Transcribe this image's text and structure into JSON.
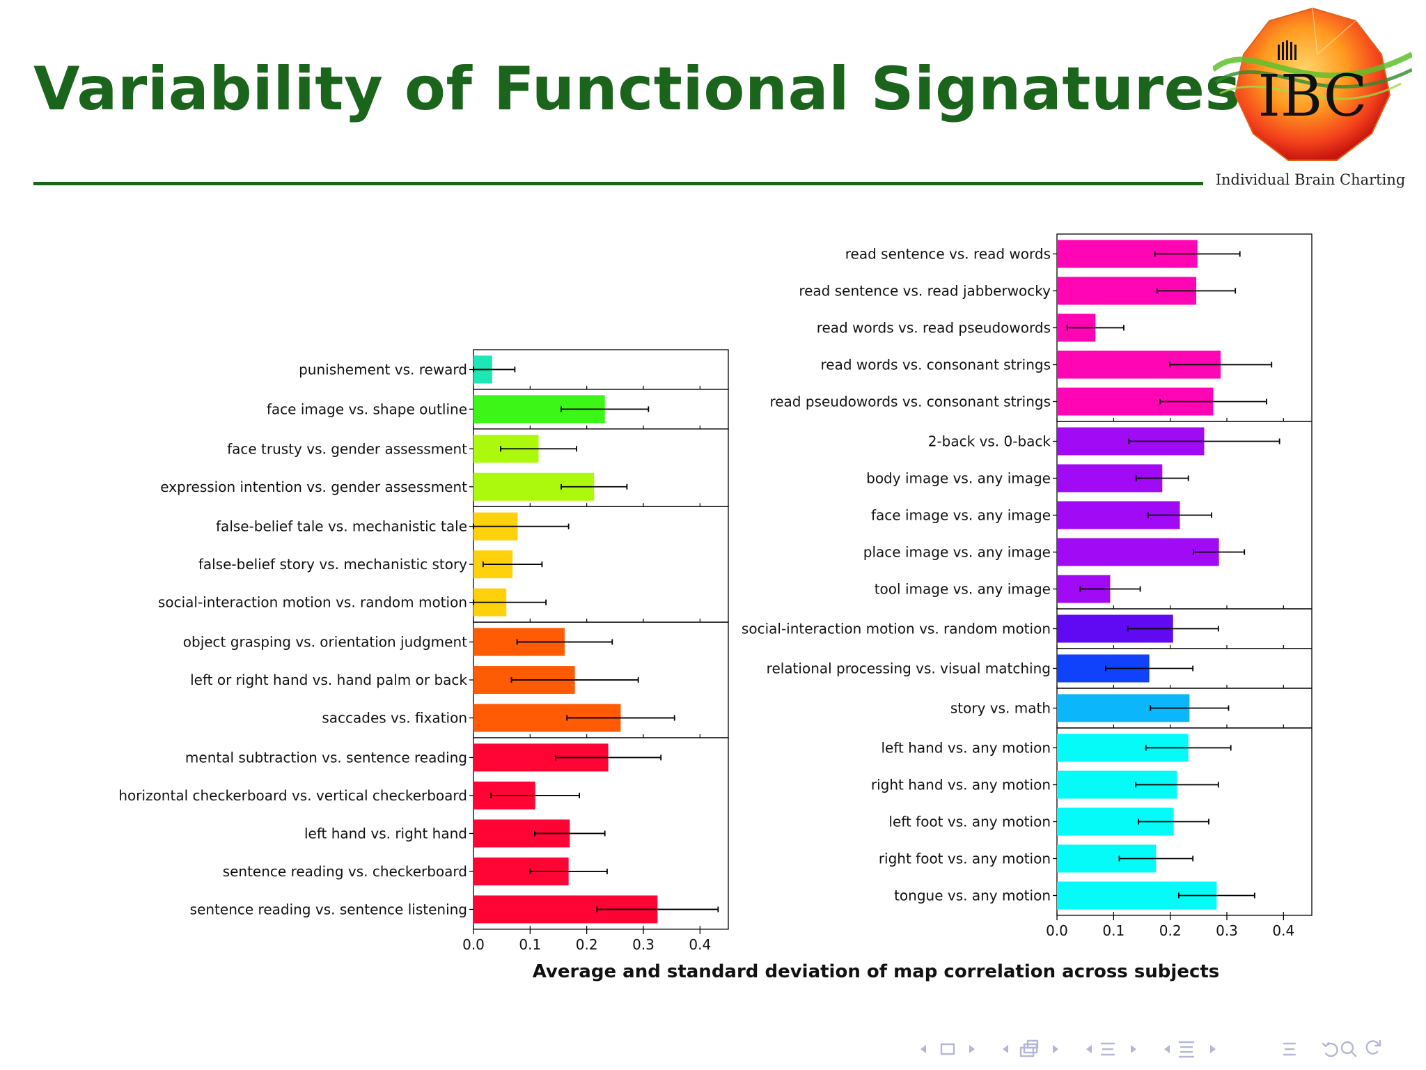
{
  "slide": {
    "title": "Variability of Functional Signatures",
    "logo_text": "IBC",
    "logo_caption": "Individual Brain Charting",
    "figure_caption": "Average and standard deviation of map correlation across subjects"
  },
  "colors": {
    "title_green": "#1b641b",
    "nav_icons": "#b5b7d6"
  },
  "navigation": {
    "icons": [
      "nav-left-arrow-icon",
      "frame-icon",
      "nav-right-arrow-icon",
      "nav-left-arrow-icon",
      "subsection-icon",
      "nav-right-arrow-icon",
      "nav-left-arrow-icon",
      "section-icon",
      "nav-right-arrow-icon",
      "nav-left-arrow-icon",
      "document-icon",
      "nav-right-arrow-icon",
      "outline-icon",
      "back-icon",
      "search-icon",
      "refresh-icon"
    ]
  },
  "chart_data": [
    {
      "type": "bar",
      "orientation": "horizontal",
      "xlim": [
        0,
        0.45
      ],
      "xticks": [
        "0.0",
        "0.1",
        "0.2",
        "0.3",
        "0.4"
      ],
      "legend": "none",
      "grid": false,
      "groups": [
        {
          "bars": [
            {
              "label": "punishement vs. reward",
              "value": 0.033,
              "std": 0.04,
              "color": "#1de7b4"
            }
          ]
        },
        {
          "bars": [
            {
              "label": "face image vs. shape outline",
              "value": 0.232,
              "std": 0.077,
              "color": "#3cf618"
            }
          ]
        },
        {
          "bars": [
            {
              "label": "face trusty vs. gender assessment",
              "value": 0.115,
              "std": 0.067,
              "color": "#adf90d"
            },
            {
              "label": "expression intention vs. gender assessment",
              "value": 0.213,
              "std": 0.058,
              "color": "#adf90d"
            }
          ]
        },
        {
          "bars": [
            {
              "label": "false-belief tale vs. mechanistic tale",
              "value": 0.078,
              "std": 0.09,
              "color": "#ffd10a"
            },
            {
              "label": "false-belief story vs. mechanistic story",
              "value": 0.069,
              "std": 0.052,
              "color": "#ffd10a"
            },
            {
              "label": "social-interaction motion vs. random motion",
              "value": 0.058,
              "std": 0.07,
              "color": "#ffd10a"
            }
          ]
        },
        {
          "bars": [
            {
              "label": "object grasping vs. orientation judgment",
              "value": 0.161,
              "std": 0.084,
              "color": "#ff5b05"
            },
            {
              "label": "left or right hand vs. hand palm or back",
              "value": 0.179,
              "std": 0.112,
              "color": "#ff5b05"
            },
            {
              "label": "saccades vs. fixation",
              "value": 0.26,
              "std": 0.095,
              "color": "#ff5b05"
            }
          ]
        },
        {
          "bars": [
            {
              "label": "mental subtraction vs. sentence reading",
              "value": 0.238,
              "std": 0.093,
              "color": "#ff0536"
            },
            {
              "label": "horizontal checkerboard vs. vertical checkerboard",
              "value": 0.109,
              "std": 0.078,
              "color": "#ff0536"
            },
            {
              "label": "left hand vs. right hand",
              "value": 0.17,
              "std": 0.062,
              "color": "#ff0536"
            },
            {
              "label": "sentence reading vs. checkerboard",
              "value": 0.168,
              "std": 0.068,
              "color": "#ff0536"
            },
            {
              "label": "sentence reading vs. sentence listening",
              "value": 0.325,
              "std": 0.107,
              "color": "#ff0536"
            }
          ]
        }
      ]
    },
    {
      "type": "bar",
      "orientation": "horizontal",
      "xlim": [
        0,
        0.45
      ],
      "xticks": [
        "0.0",
        "0.1",
        "0.2",
        "0.3",
        "0.4"
      ],
      "legend": "none",
      "grid": false,
      "groups": [
        {
          "bars": [
            {
              "label": "read sentence vs. read words",
              "value": 0.248,
              "std": 0.075,
              "color": "#ff05b4"
            },
            {
              "label": "read sentence vs. read jabberwocky",
              "value": 0.246,
              "std": 0.069,
              "color": "#ff05b4"
            },
            {
              "label": "read words vs. read pseudowords",
              "value": 0.068,
              "std": 0.05,
              "color": "#ff05b4"
            },
            {
              "label": "read words vs. consonant strings",
              "value": 0.289,
              "std": 0.09,
              "color": "#ff05b4"
            },
            {
              "label": "read pseudowords vs. consonant strings",
              "value": 0.276,
              "std": 0.094,
              "color": "#ff05b4"
            }
          ]
        },
        {
          "bars": [
            {
              "label": "2-back vs. 0-back",
              "value": 0.26,
              "std": 0.133,
              "color": "#a10af5"
            },
            {
              "label": "body image vs. any image",
              "value": 0.186,
              "std": 0.046,
              "color": "#a10af5"
            },
            {
              "label": "face image vs. any image",
              "value": 0.217,
              "std": 0.056,
              "color": "#a10af5"
            },
            {
              "label": "place image vs. any image",
              "value": 0.286,
              "std": 0.045,
              "color": "#a10af5"
            },
            {
              "label": "tool image vs. any image",
              "value": 0.094,
              "std": 0.053,
              "color": "#a10af5"
            }
          ]
        },
        {
          "bars": [
            {
              "label": "social-interaction motion vs. random motion",
              "value": 0.205,
              "std": 0.08,
              "color": "#600af3"
            }
          ]
        },
        {
          "bars": [
            {
              "label": "relational processing vs. visual matching",
              "value": 0.163,
              "std": 0.077,
              "color": "#0f42fa"
            }
          ]
        },
        {
          "bars": [
            {
              "label": "story vs. math",
              "value": 0.234,
              "std": 0.069,
              "color": "#0bb7fa"
            }
          ]
        },
        {
          "bars": [
            {
              "label": "left hand vs. any motion",
              "value": 0.232,
              "std": 0.075,
              "color": "#05fbf7"
            },
            {
              "label": "right hand vs. any motion",
              "value": 0.212,
              "std": 0.073,
              "color": "#05fbf7"
            },
            {
              "label": "left foot vs. any motion",
              "value": 0.206,
              "std": 0.062,
              "color": "#05fbf7"
            },
            {
              "label": "right foot vs. any motion",
              "value": 0.175,
              "std": 0.065,
              "color": "#05fbf7"
            },
            {
              "label": "tongue vs. any motion",
              "value": 0.282,
              "std": 0.067,
              "color": "#05fbf7"
            }
          ]
        }
      ]
    }
  ]
}
